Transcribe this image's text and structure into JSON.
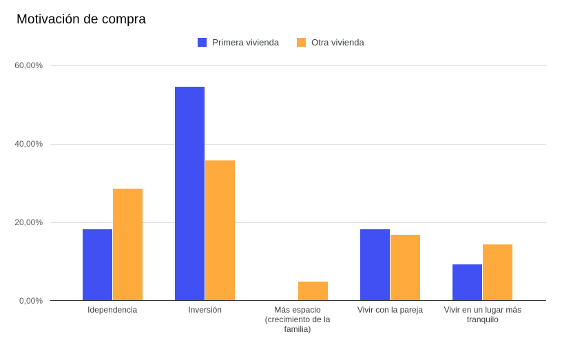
{
  "chart_data": {
    "type": "bar",
    "title": "Motivación de compra",
    "xlabel": "",
    "ylabel": "",
    "ylim": [
      0,
      60
    ],
    "grid": true,
    "legend_position": "top-center",
    "y_ticks": [
      "60,00%",
      "40,00%",
      "20,00%",
      "0,00%"
    ],
    "y_tick_format": "percent, comma decimal separator",
    "categories": [
      "Idependencia",
      "Inversión",
      "Más espacio (crecimiento de la familia)",
      "Vivir con la pareja",
      "Vivir en un lugar más tranquilo"
    ],
    "series": [
      {
        "name": "Primera vivienda",
        "color": "#4150F2",
        "values": [
          18.18,
          54.55,
          0,
          18.18,
          9.09
        ]
      },
      {
        "name": "Otra vivienda",
        "color": "#FFAA3C",
        "values": [
          28.57,
          35.71,
          4.76,
          16.67,
          14.29
        ]
      }
    ],
    "colors": {
      "gridline": "#d9d9d9",
      "axis_line": "#333333",
      "title_text": "#000000",
      "axis_label_text": "#3c3c3c",
      "tick_label_text": "#555555",
      "background": "#ffffff"
    }
  }
}
